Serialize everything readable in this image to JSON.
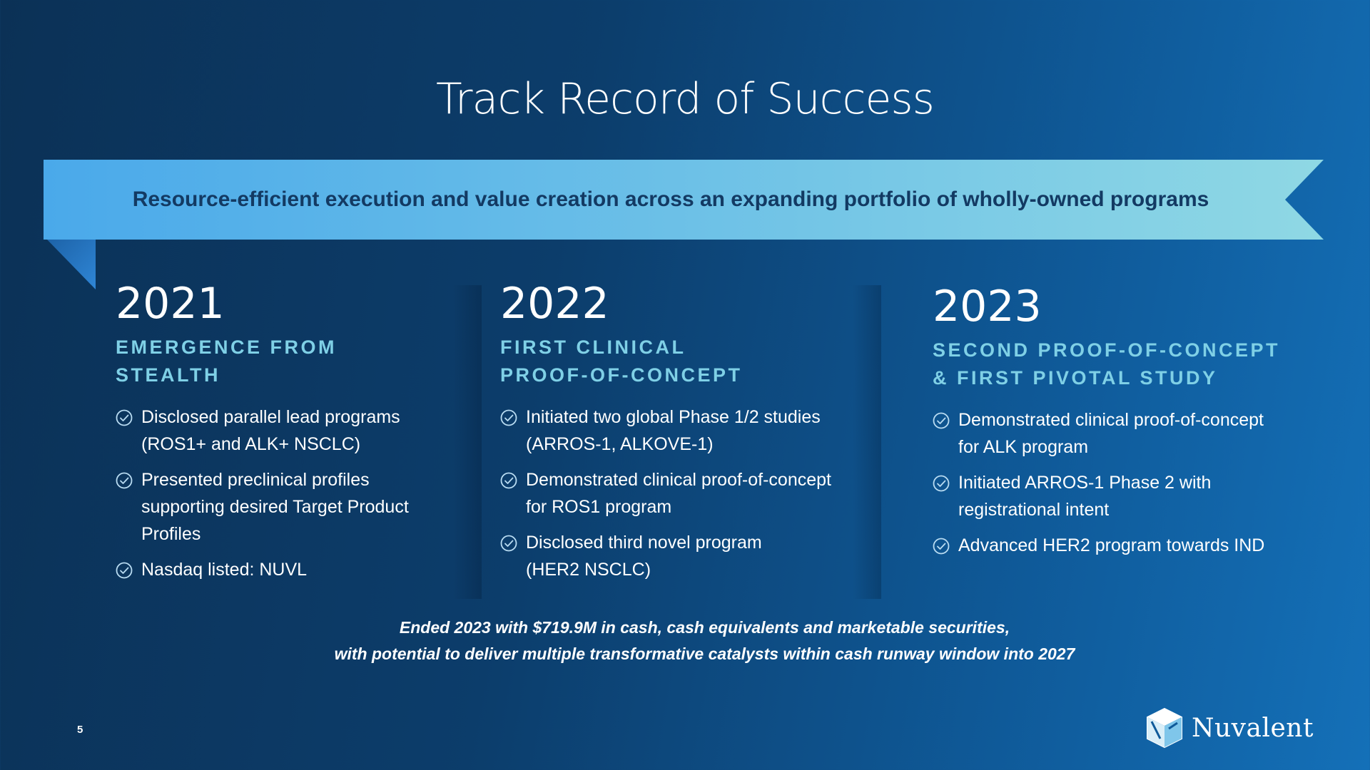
{
  "title": "Track Record of Success",
  "banner": {
    "text": "Resource-efficient execution and value creation across an expanding portfolio of wholly-owned programs"
  },
  "columns": [
    {
      "year": "2021",
      "subtitle_lines": [
        "EMERGENCE FROM",
        "STEALTH"
      ],
      "bullets": [
        {
          "lines": [
            "Disclosed parallel lead programs",
            "(ROS1+ and ALK+ NSCLC)"
          ]
        },
        {
          "lines": [
            "Presented preclinical profiles",
            "supporting desired Target Product",
            "Profiles"
          ]
        },
        {
          "lines": [
            "Nasdaq listed: NUVL"
          ]
        }
      ]
    },
    {
      "year": "2022",
      "subtitle_lines": [
        "FIRST CLINICAL",
        "PROOF-OF-CONCEPT"
      ],
      "bullets": [
        {
          "lines": [
            "Initiated two global Phase 1/2 studies",
            "(ARROS-1, ALKOVE-1)"
          ]
        },
        {
          "lines": [
            "Demonstrated clinical proof-of-concept",
            "for ROS1 program"
          ]
        },
        {
          "lines": [
            "Disclosed third novel program",
            "(HER2 NSCLC)"
          ]
        }
      ]
    },
    {
      "year": "2023",
      "subtitle_lines": [
        "SECOND PROOF-OF-CONCEPT",
        "& FIRST PIVOTAL STUDY"
      ],
      "bullets": [
        {
          "lines": [
            "Demonstrated clinical proof-of-concept",
            "for ALK program"
          ]
        },
        {
          "lines": [
            "Initiated ARROS-1 Phase 2 with",
            "registrational intent"
          ]
        },
        {
          "lines": [
            "Advanced HER2 program towards IND"
          ]
        }
      ]
    }
  ],
  "footer_note": {
    "lines": [
      "Ended 2023 with $719.9M in cash, cash equivalents and marketable securities,",
      "with potential to deliver multiple transformative catalysts within cash runway window into 2027"
    ]
  },
  "page_number": "5",
  "logo": {
    "name": "Nuvalent",
    "icon": "nuvalent-logo-icon"
  },
  "colors": {
    "accent_text": "#7fd0e6",
    "banner_start": "#4aa9ea",
    "banner_end": "#8fd8e4",
    "banner_text": "#133a63"
  }
}
